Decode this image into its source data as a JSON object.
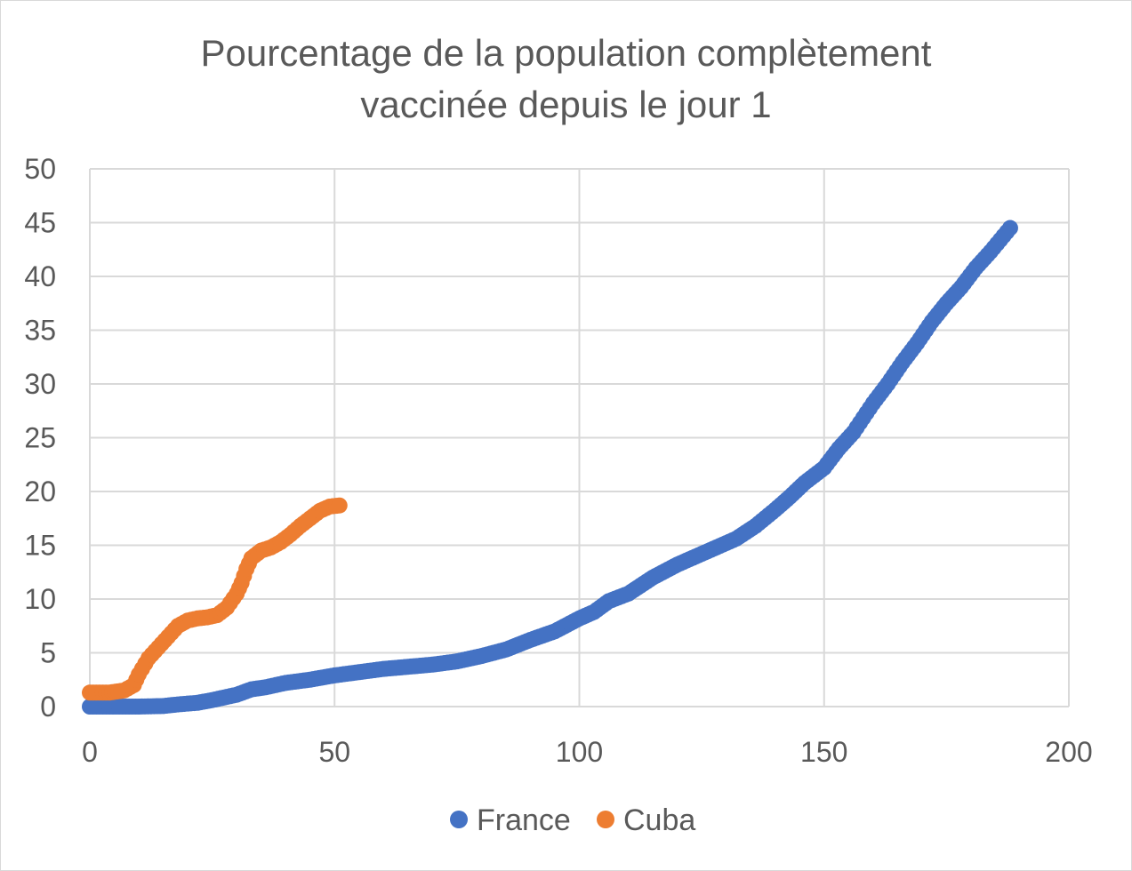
{
  "chart_data": {
    "type": "scatter",
    "title_lines": [
      "Pourcentage de la population complètement",
      "vaccinée depuis le jour 1"
    ],
    "xlabel": "",
    "ylabel": "",
    "xlim": [
      0,
      200
    ],
    "ylim": [
      0,
      50
    ],
    "x_ticks": [
      0,
      50,
      100,
      150,
      200
    ],
    "y_ticks": [
      0,
      5,
      10,
      15,
      20,
      25,
      30,
      35,
      40,
      45,
      50
    ],
    "grid": true,
    "legend_position": "bottom",
    "series": [
      {
        "name": "France",
        "color": "#4472C4",
        "points": [
          [
            0,
            0
          ],
          [
            10,
            0
          ],
          [
            15,
            0.05
          ],
          [
            18,
            0.2
          ],
          [
            22,
            0.35
          ],
          [
            25,
            0.6
          ],
          [
            28,
            0.9
          ],
          [
            30,
            1.1
          ],
          [
            33,
            1.6
          ],
          [
            36,
            1.8
          ],
          [
            40,
            2.2
          ],
          [
            45,
            2.5
          ],
          [
            50,
            2.9
          ],
          [
            55,
            3.2
          ],
          [
            60,
            3.5
          ],
          [
            65,
            3.7
          ],
          [
            70,
            3.9
          ],
          [
            75,
            4.2
          ],
          [
            80,
            4.7
          ],
          [
            85,
            5.3
          ],
          [
            90,
            6.2
          ],
          [
            95,
            7.0
          ],
          [
            100,
            8.2
          ],
          [
            103,
            8.8
          ],
          [
            106,
            9.8
          ],
          [
            110,
            10.5
          ],
          [
            115,
            12.0
          ],
          [
            120,
            13.2
          ],
          [
            125,
            14.2
          ],
          [
            128,
            14.8
          ],
          [
            132,
            15.6
          ],
          [
            136,
            16.8
          ],
          [
            140,
            18.3
          ],
          [
            143,
            19.5
          ],
          [
            146,
            20.8
          ],
          [
            150,
            22.2
          ],
          [
            153,
            24.0
          ],
          [
            156,
            25.5
          ],
          [
            160,
            28.2
          ],
          [
            163,
            30.0
          ],
          [
            166,
            32.0
          ],
          [
            169,
            33.8
          ],
          [
            172,
            35.8
          ],
          [
            175,
            37.5
          ],
          [
            178,
            39.0
          ],
          [
            181,
            40.8
          ],
          [
            184,
            42.3
          ],
          [
            188,
            44.5
          ]
        ]
      },
      {
        "name": "Cuba",
        "color": "#ED7D31",
        "points": [
          [
            0,
            1.3
          ],
          [
            4,
            1.3
          ],
          [
            7,
            1.5
          ],
          [
            9,
            2.0
          ],
          [
            10,
            3.0
          ],
          [
            12,
            4.5
          ],
          [
            14,
            5.5
          ],
          [
            16,
            6.5
          ],
          [
            18,
            7.5
          ],
          [
            20,
            8.0
          ],
          [
            22,
            8.2
          ],
          [
            24,
            8.3
          ],
          [
            26,
            8.5
          ],
          [
            28,
            9.2
          ],
          [
            30,
            10.5
          ],
          [
            31,
            11.5
          ],
          [
            32,
            12.8
          ],
          [
            33,
            13.8
          ],
          [
            35,
            14.5
          ],
          [
            37,
            14.8
          ],
          [
            39,
            15.3
          ],
          [
            41,
            16.0
          ],
          [
            43,
            16.8
          ],
          [
            45,
            17.5
          ],
          [
            47,
            18.2
          ],
          [
            49,
            18.6
          ],
          [
            51,
            18.7
          ]
        ]
      }
    ]
  }
}
